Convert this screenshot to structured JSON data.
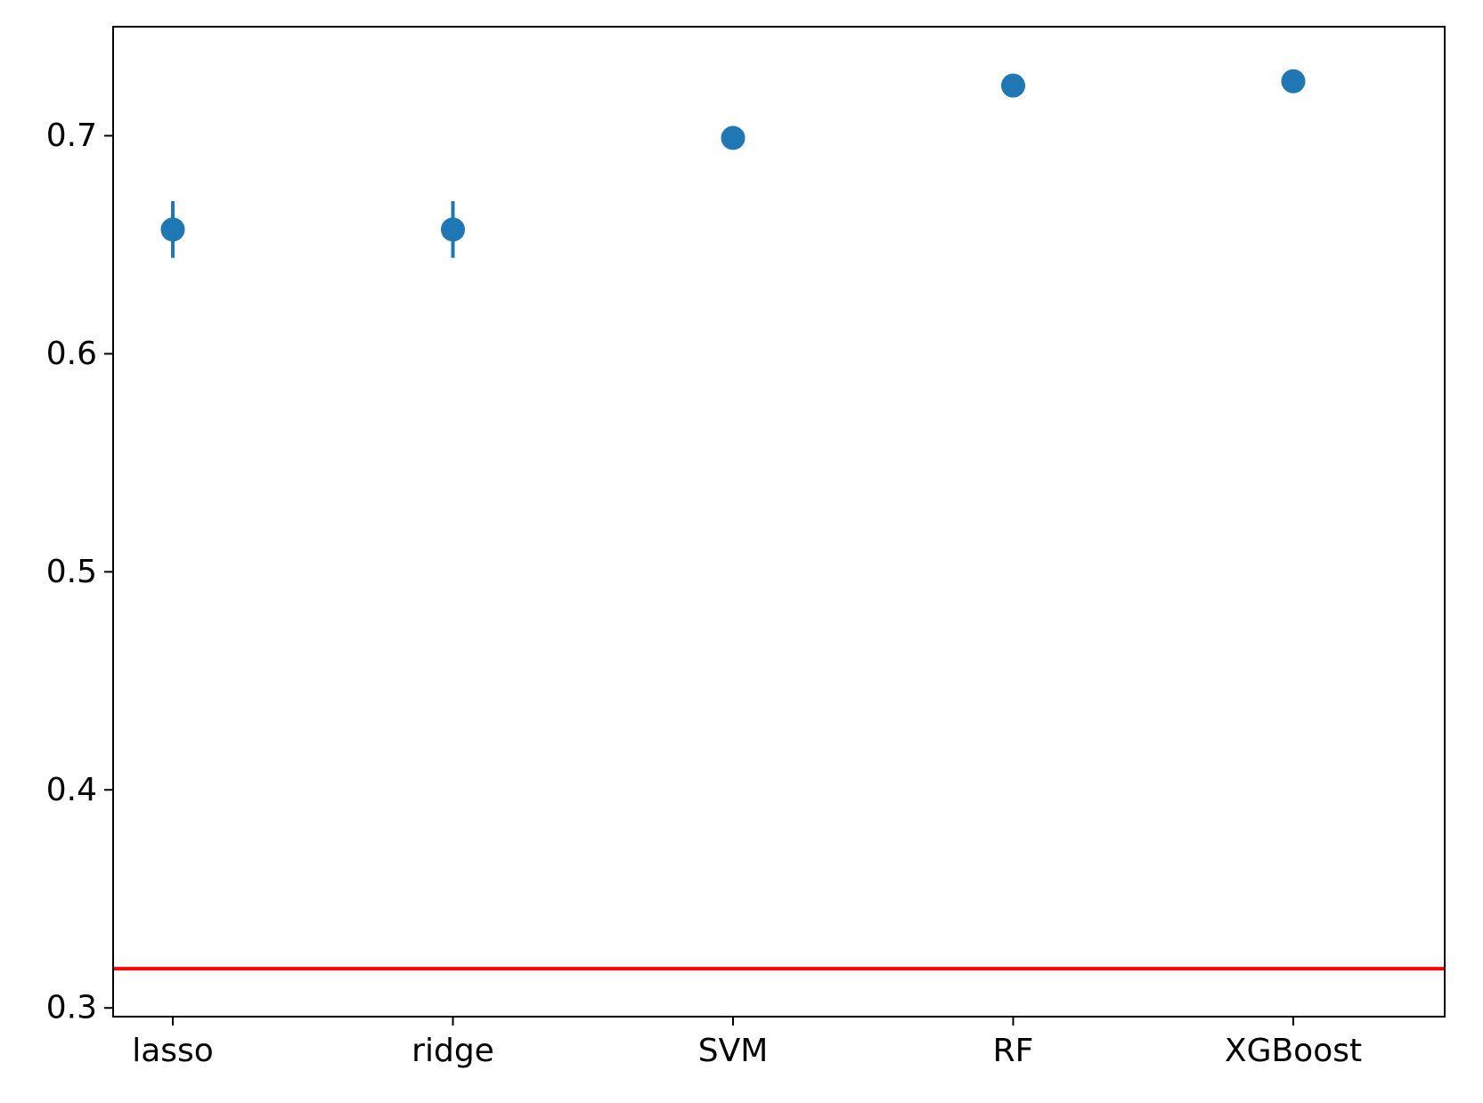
{
  "chart_data": {
    "type": "scatter",
    "categories": [
      "lasso",
      "ridge",
      "SVM",
      "RF",
      "XGBoost"
    ],
    "values": [
      0.657,
      0.657,
      0.699,
      0.723,
      0.725
    ],
    "errors": [
      0.013,
      0.013,
      0.005,
      0.002,
      0.002
    ],
    "reference_line": 0.318,
    "ylim": [
      0.296,
      0.75
    ],
    "yticks": [
      0.3,
      0.4,
      0.5,
      0.6,
      0.7
    ],
    "ytick_labels": [
      "0.3",
      "0.4",
      "0.5",
      "0.6",
      "0.7"
    ],
    "title": "",
    "xlabel": "",
    "ylabel": "",
    "grid": false,
    "colors": {
      "points": "#1f77b4",
      "reference_line": "#ff0000",
      "axes": "#000000"
    }
  }
}
